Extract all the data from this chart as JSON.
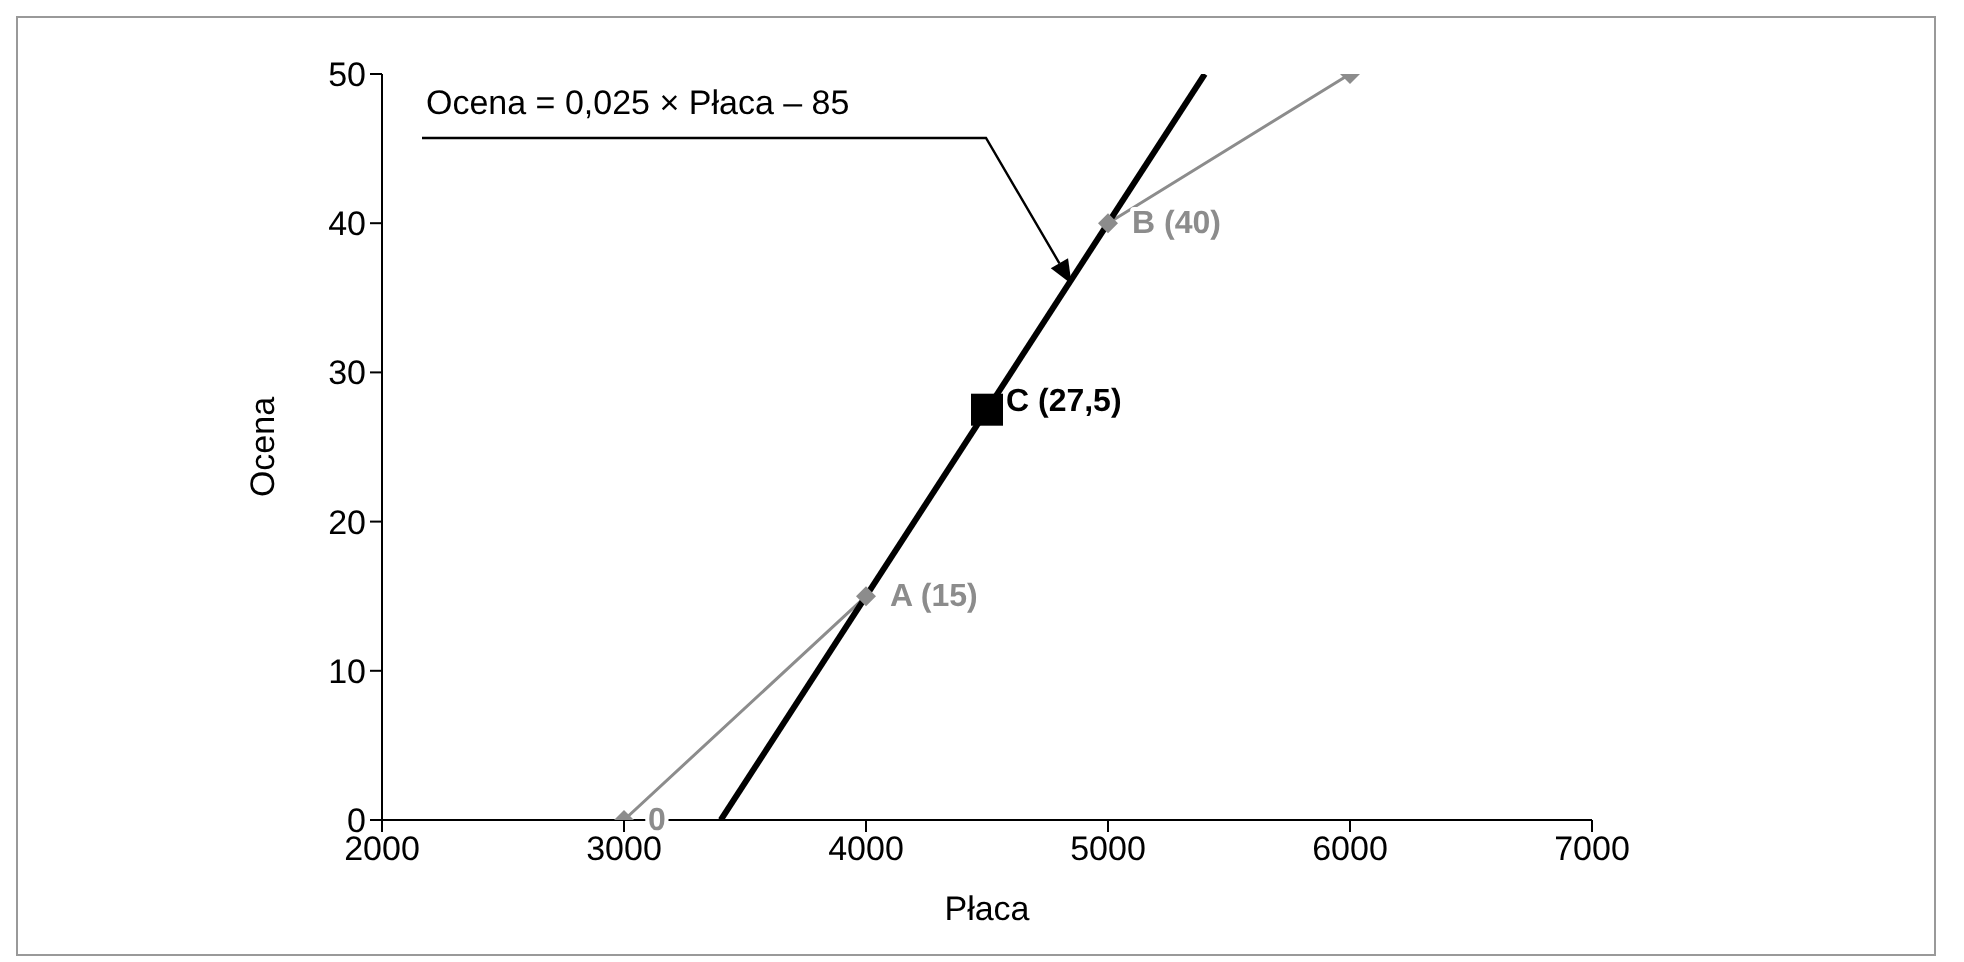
{
  "chart_data": {
    "type": "line",
    "xlabel": "Płaca",
    "ylabel": "Ocena",
    "xlim": [
      2000,
      7000
    ],
    "xticks": [
      2000,
      3000,
      4000,
      5000,
      6000,
      7000
    ],
    "ylim": [
      0,
      50
    ],
    "yticks": [
      0,
      10,
      20,
      30,
      40,
      50
    ],
    "grid": false,
    "series": [
      {
        "color": "#8c8c8c",
        "marker": "diamond",
        "x": [
          3000,
          4000,
          5000,
          6000
        ],
        "values": [
          0,
          15,
          40,
          50
        ],
        "value_labels": [
          "0",
          "A (15)",
          "B (40)",
          null
        ]
      },
      {
        "type": "line",
        "color": "#000000",
        "marker": "none",
        "x": [
          3400,
          5400
        ],
        "values": [
          0,
          50
        ]
      },
      {
        "type": "scatter",
        "color": "#000000",
        "marker": "square",
        "x": [
          4500
        ],
        "values": [
          27.5
        ],
        "value_labels": [
          "C (27,5)"
        ]
      }
    ],
    "annotations": [
      "Ocena = 0,025 × Płaca – 85"
    ]
  }
}
